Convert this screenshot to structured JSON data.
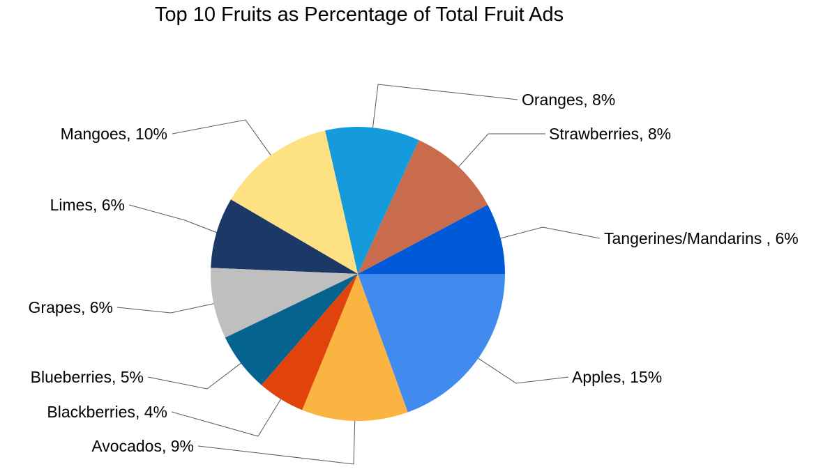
{
  "chart_data": {
    "type": "pie",
    "title": "Top 10 Fruits as Percentage of Total Fruit Ads",
    "slices": [
      {
        "label": "Tangerines/Mandarins ",
        "value": 6,
        "display": "Tangerines/Mandarins , 6%",
        "color": "#0059d6"
      },
      {
        "label": "Strawberries",
        "value": 8,
        "display": "Strawberries, 8%",
        "color": "#c96b4d"
      },
      {
        "label": "Oranges",
        "value": 8,
        "display": "Oranges, 8%",
        "color": "#159bdc"
      },
      {
        "label": "Mangoes",
        "value": 10,
        "display": "Mangoes, 10%",
        "color": "#fde183"
      },
      {
        "label": "Limes",
        "value": 6,
        "display": "Limes, 6%",
        "color": "#1b3866"
      },
      {
        "label": "Grapes",
        "value": 6,
        "display": "Grapes, 6%",
        "color": "#bfbfbf"
      },
      {
        "label": "Blueberries",
        "value": 5,
        "display": "Blueberries, 5%",
        "color": "#06628f"
      },
      {
        "label": "Blackberries",
        "value": 4,
        "display": "Blackberries, 4%",
        "color": "#e0430c"
      },
      {
        "label": "Avocados",
        "value": 9,
        "display": "Avocados, 9%",
        "color": "#fbb441"
      },
      {
        "label": "Apples",
        "value": 15,
        "display": "Apples, 15%",
        "color": "#418bef"
      }
    ]
  }
}
